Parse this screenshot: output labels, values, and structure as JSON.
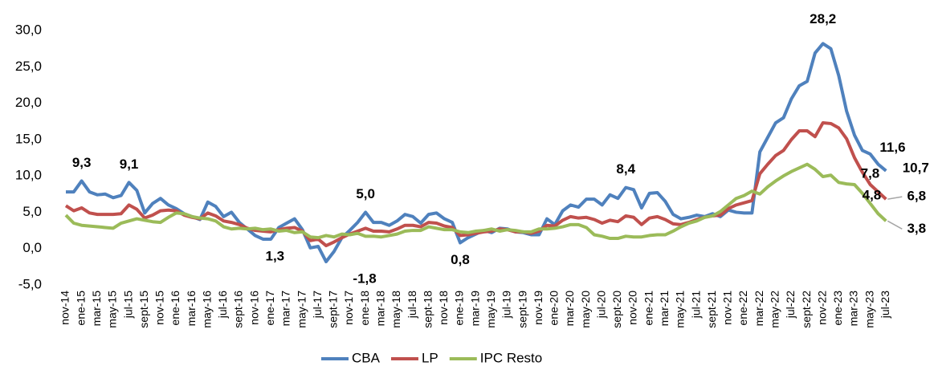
{
  "chart_data": {
    "type": "line",
    "categories": [
      "nov-14",
      null,
      "ene-15",
      null,
      "mar-15",
      null,
      "may-15",
      null,
      "jul-15",
      null,
      "sept-15",
      null,
      "nov-15",
      null,
      "ene-16",
      null,
      "mar-16",
      null,
      "may-16",
      null,
      "jul-16",
      null,
      "sept-16",
      null,
      "nov-16",
      null,
      "ene-17",
      null,
      "mar-17",
      null,
      "may-17",
      null,
      "jul-17",
      null,
      "sept-17",
      null,
      "nov-17",
      null,
      "ene-18",
      null,
      "mar-18",
      null,
      "may-18",
      null,
      "jul-18",
      null,
      "sept-18",
      null,
      "nov-18",
      null,
      "ene-19",
      null,
      "mar-19",
      null,
      "may-19",
      null,
      "jul-19",
      null,
      "sept-19",
      null,
      "nov-19",
      null,
      "ene-20",
      null,
      "mar-20",
      null,
      "may-20",
      null,
      "jul-20",
      null,
      "sept-20",
      null,
      "nov-20",
      null,
      "ene-21",
      null,
      "mar-21",
      null,
      "may-21",
      null,
      "jul-21",
      null,
      "sept-21",
      null,
      "nov-21",
      null,
      "ene-22",
      null,
      "mar-22",
      null,
      "may-22",
      null,
      "jul-22",
      null,
      "sept-22",
      null,
      "nov-22",
      null,
      "ene-23",
      null,
      "mar-23",
      null,
      "may-23",
      null,
      "jul-23"
    ],
    "series": [
      {
        "name": "CBA",
        "color": "#4f81bd",
        "values": [
          7.8,
          7.8,
          9.3,
          7.8,
          7.4,
          7.5,
          7.0,
          7.3,
          9.1,
          8.0,
          4.9,
          6.2,
          6.9,
          6.0,
          5.5,
          4.8,
          4.4,
          4.0,
          6.4,
          5.8,
          4.4,
          5.0,
          3.6,
          2.7,
          1.8,
          1.3,
          1.3,
          2.9,
          3.5,
          4.1,
          2.6,
          0.1,
          0.3,
          -1.8,
          -0.4,
          1.5,
          2.5,
          3.6,
          5.0,
          3.6,
          3.6,
          3.2,
          3.8,
          4.7,
          4.4,
          3.5,
          4.7,
          4.9,
          4.1,
          3.6,
          0.8,
          1.5,
          2.0,
          2.5,
          2.2,
          2.8,
          2.7,
          2.3,
          2.2,
          1.9,
          1.9,
          4.1,
          3.3,
          5.2,
          6.0,
          5.7,
          6.8,
          6.8,
          6.0,
          7.4,
          6.9,
          8.4,
          8.1,
          5.6,
          7.6,
          7.7,
          6.5,
          4.7,
          4.1,
          4.3,
          4.6,
          4.4,
          4.8,
          4.4,
          5.3,
          5.0,
          4.9,
          4.9,
          13.3,
          15.3,
          17.3,
          18.0,
          20.6,
          22.4,
          23.0,
          26.9,
          28.2,
          27.5,
          23.8,
          18.9,
          15.6,
          13.5,
          13.0,
          11.6,
          10.7
        ],
        "value_labels": [
          null,
          null,
          "9,3",
          null,
          null,
          null,
          null,
          null,
          "9,1",
          null,
          null,
          null,
          null,
          null,
          null,
          null,
          null,
          null,
          null,
          null,
          null,
          null,
          null,
          null,
          null,
          null,
          "1,3",
          null,
          null,
          null,
          null,
          null,
          null,
          "-1,8",
          null,
          null,
          null,
          null,
          "5,0",
          null,
          null,
          null,
          null,
          null,
          null,
          null,
          null,
          null,
          null,
          null,
          "0,8",
          null,
          null,
          null,
          null,
          null,
          null,
          null,
          null,
          null,
          null,
          null,
          null,
          null,
          null,
          null,
          null,
          null,
          null,
          null,
          null,
          "8,4",
          null,
          null,
          null,
          null,
          null,
          null,
          null,
          null,
          null,
          null,
          null,
          null,
          null,
          null,
          null,
          null,
          null,
          null,
          null,
          null,
          null,
          null,
          null,
          null,
          "28,2",
          null,
          null,
          null,
          null,
          null,
          null,
          "11,6",
          "10,7"
        ]
      },
      {
        "name": "LP",
        "color": "#c0504d",
        "values": [
          5.9,
          5.2,
          5.6,
          4.9,
          4.7,
          4.7,
          4.7,
          4.8,
          6.0,
          5.4,
          4.2,
          4.6,
          5.2,
          5.3,
          5.2,
          4.6,
          4.3,
          4.1,
          4.9,
          4.5,
          3.8,
          3.6,
          3.3,
          2.8,
          2.5,
          2.4,
          2.3,
          2.6,
          2.8,
          2.9,
          2.4,
          1.1,
          1.3,
          0.4,
          0.9,
          1.5,
          2.0,
          2.4,
          2.8,
          2.4,
          2.4,
          2.3,
          2.7,
          3.2,
          3.2,
          3.0,
          3.6,
          3.5,
          3.1,
          2.9,
          1.8,
          1.9,
          2.1,
          2.3,
          2.4,
          2.7,
          2.6,
          2.3,
          2.3,
          2.1,
          2.4,
          3.2,
          3.1,
          3.9,
          4.4,
          4.2,
          4.3,
          4.0,
          3.5,
          3.9,
          3.7,
          4.5,
          4.3,
          3.3,
          4.2,
          4.4,
          4.0,
          3.4,
          3.3,
          3.6,
          4.0,
          4.3,
          4.5,
          4.6,
          5.5,
          6.0,
          6.3,
          6.6,
          10.3,
          11.6,
          12.8,
          13.5,
          15.0,
          16.2,
          16.2,
          15.4,
          17.3,
          17.2,
          16.6,
          15.1,
          12.5,
          10.5,
          8.8,
          7.8,
          6.8
        ],
        "value_labels": [
          null,
          null,
          null,
          null,
          null,
          null,
          null,
          null,
          null,
          null,
          null,
          null,
          null,
          null,
          null,
          null,
          null,
          null,
          null,
          null,
          null,
          null,
          null,
          null,
          null,
          null,
          null,
          null,
          null,
          null,
          null,
          null,
          null,
          null,
          null,
          null,
          null,
          null,
          null,
          null,
          null,
          null,
          null,
          null,
          null,
          null,
          null,
          null,
          null,
          null,
          null,
          null,
          null,
          null,
          null,
          null,
          null,
          null,
          null,
          null,
          null,
          null,
          null,
          null,
          null,
          null,
          null,
          null,
          null,
          null,
          null,
          null,
          null,
          null,
          null,
          null,
          null,
          null,
          null,
          null,
          null,
          null,
          null,
          null,
          null,
          null,
          null,
          null,
          null,
          null,
          null,
          null,
          null,
          null,
          null,
          null,
          null,
          null,
          null,
          null,
          null,
          null,
          null,
          "7,8",
          "6,8"
        ]
      },
      {
        "name": "IPC Resto",
        "color": "#9bbb59",
        "values": [
          4.6,
          3.5,
          3.2,
          3.1,
          3.0,
          2.9,
          2.8,
          3.5,
          3.8,
          4.1,
          3.9,
          3.7,
          3.6,
          4.3,
          4.9,
          4.8,
          4.4,
          4.2,
          4.1,
          3.8,
          3.0,
          2.7,
          2.8,
          2.7,
          2.8,
          2.6,
          2.7,
          2.4,
          2.5,
          2.2,
          2.3,
          1.6,
          1.5,
          1.8,
          1.6,
          2.0,
          1.9,
          2.1,
          1.7,
          1.7,
          1.6,
          1.8,
          2.0,
          2.4,
          2.5,
          2.5,
          3.0,
          2.8,
          2.6,
          2.6,
          2.3,
          2.2,
          2.4,
          2.5,
          2.7,
          2.4,
          2.6,
          2.5,
          2.3,
          2.3,
          2.7,
          2.7,
          2.8,
          3.0,
          3.3,
          3.3,
          2.9,
          1.9,
          1.7,
          1.4,
          1.4,
          1.7,
          1.6,
          1.6,
          1.8,
          1.9,
          1.9,
          2.4,
          3.0,
          3.5,
          3.8,
          4.3,
          4.5,
          5.1,
          6.0,
          6.9,
          7.3,
          7.9,
          7.5,
          8.5,
          9.3,
          10.0,
          10.6,
          11.1,
          11.6,
          10.9,
          9.9,
          10.1,
          9.1,
          8.9,
          8.8,
          7.6,
          6.2,
          4.8,
          3.8
        ],
        "value_labels": [
          null,
          null,
          null,
          null,
          null,
          null,
          null,
          null,
          null,
          null,
          null,
          null,
          null,
          null,
          null,
          null,
          null,
          null,
          null,
          null,
          null,
          null,
          null,
          null,
          null,
          null,
          null,
          null,
          null,
          null,
          null,
          null,
          null,
          null,
          null,
          null,
          null,
          null,
          null,
          null,
          null,
          null,
          null,
          null,
          null,
          null,
          null,
          null,
          null,
          null,
          null,
          null,
          null,
          null,
          null,
          null,
          null,
          null,
          null,
          null,
          null,
          null,
          null,
          null,
          null,
          null,
          null,
          null,
          null,
          null,
          null,
          null,
          null,
          null,
          null,
          null,
          null,
          null,
          null,
          null,
          null,
          null,
          null,
          null,
          null,
          null,
          null,
          null,
          null,
          null,
          null,
          null,
          null,
          null,
          null,
          null,
          null,
          null,
          null,
          null,
          null,
          null,
          null,
          "4,8",
          "3,8"
        ]
      }
    ],
    "ylim": [
      -5,
      30
    ],
    "yticks": [
      {
        "value": -5,
        "label": "-5,0"
      },
      {
        "value": 0,
        "label": "0,0"
      },
      {
        "value": 5,
        "label": "5,0"
      },
      {
        "value": 10,
        "label": "10,0"
      },
      {
        "value": 15,
        "label": "15,0"
      },
      {
        "value": 20,
        "label": "20,0"
      },
      {
        "value": 25,
        "label": "25,0"
      },
      {
        "value": 30,
        "label": "30,0"
      }
    ],
    "grid": false,
    "legend": "bottom"
  }
}
